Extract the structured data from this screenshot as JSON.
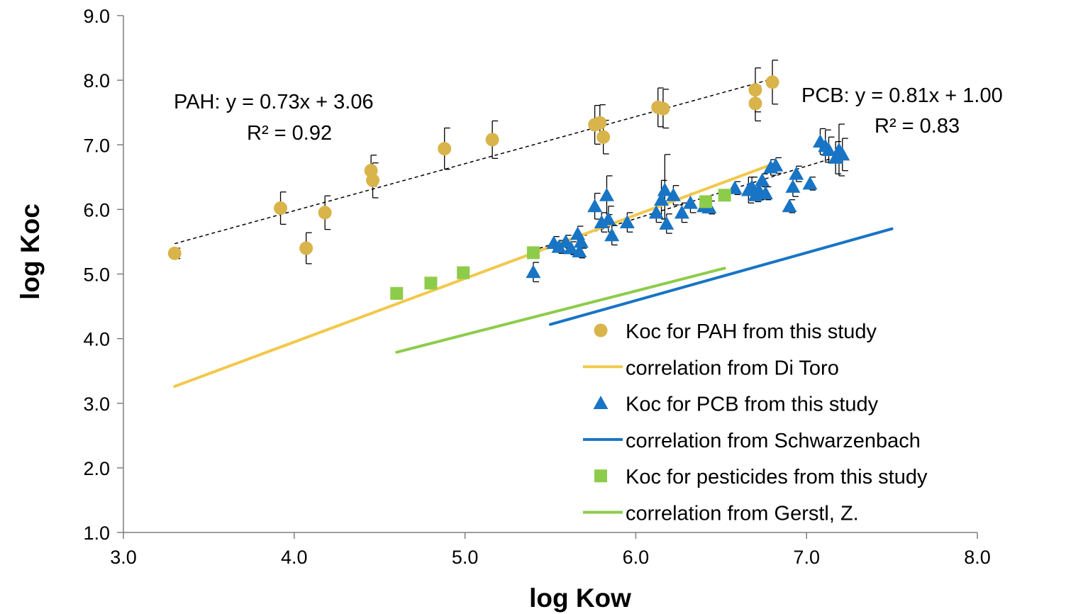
{
  "chart_data": {
    "type": "scatter",
    "title": "",
    "xlabel": "log Kow",
    "ylabel": "log Koc",
    "xlim": [
      3.0,
      8.0
    ],
    "ylim": [
      1.0,
      9.0
    ],
    "x_ticks": [
      "3.0",
      "4.0",
      "5.0",
      "6.0",
      "7.0",
      "8.0"
    ],
    "y_ticks": [
      "1.0",
      "2.0",
      "3.0",
      "4.0",
      "5.0",
      "6.0",
      "7.0",
      "8.0",
      "9.0"
    ],
    "grid": false,
    "legend_position": "bottom-right",
    "annotations": [
      {
        "lines": [
          "PAH: y = 0.73x + 3.06",
          "R² = 0.92"
        ]
      },
      {
        "lines": [
          "PCB: y = 0.81x + 1.00",
          "R² = 0.83"
        ]
      }
    ],
    "series": [
      {
        "name": "Koc for PAH from this study",
        "kind": "scatter",
        "marker": "circle",
        "color": "#D9B44A",
        "points": [
          {
            "x": 3.3,
            "y": 5.32,
            "err": 0.08
          },
          {
            "x": 3.92,
            "y": 6.02,
            "err": 0.25
          },
          {
            "x": 4.07,
            "y": 5.4,
            "err": 0.24
          },
          {
            "x": 4.18,
            "y": 5.95,
            "err": 0.26
          },
          {
            "x": 4.45,
            "y": 6.6,
            "err": 0.24
          },
          {
            "x": 4.46,
            "y": 6.45,
            "err": 0.27
          },
          {
            "x": 4.88,
            "y": 6.94,
            "err": 0.32
          },
          {
            "x": 5.16,
            "y": 7.08,
            "err": 0.29
          },
          {
            "x": 5.76,
            "y": 7.31,
            "err": 0.3
          },
          {
            "x": 5.79,
            "y": 7.34,
            "err": 0.28
          },
          {
            "x": 5.81,
            "y": 7.12,
            "err": 0.26
          },
          {
            "x": 6.13,
            "y": 7.58,
            "err": 0.3
          },
          {
            "x": 6.16,
            "y": 7.56,
            "err": 0.3
          },
          {
            "x": 6.7,
            "y": 7.85,
            "err": 0.34
          },
          {
            "x": 6.7,
            "y": 7.64,
            "err": 0.27
          },
          {
            "x": 6.8,
            "y": 7.97,
            "err": 0.34
          }
        ]
      },
      {
        "name": "correlation from Di Toro",
        "kind": "line",
        "color": "#F2C84B",
        "points": [
          {
            "x": 3.3,
            "y": 3.26
          },
          {
            "x": 6.8,
            "y": 6.7
          }
        ]
      },
      {
        "name": "Koc for PCB from this study",
        "kind": "scatter",
        "marker": "triangle",
        "color": "#1874C4",
        "points": [
          {
            "x": 5.4,
            "y": 5.03,
            "err": 0.15
          },
          {
            "x": 5.52,
            "y": 5.48,
            "err": 0.1
          },
          {
            "x": 5.55,
            "y": 5.42,
            "err": 0.1
          },
          {
            "x": 5.59,
            "y": 5.5,
            "err": 0.1
          },
          {
            "x": 5.62,
            "y": 5.4,
            "err": 0.1
          },
          {
            "x": 5.66,
            "y": 5.62,
            "err": 0.12
          },
          {
            "x": 5.67,
            "y": 5.35,
            "err": 0.1
          },
          {
            "x": 5.68,
            "y": 5.5,
            "err": 0.1
          },
          {
            "x": 5.76,
            "y": 6.05,
            "err": 0.2
          },
          {
            "x": 5.8,
            "y": 5.8,
            "err": 0.15
          },
          {
            "x": 5.83,
            "y": 6.22,
            "err": 0.3
          },
          {
            "x": 5.84,
            "y": 5.85,
            "err": 0.2
          },
          {
            "x": 5.86,
            "y": 5.6,
            "err": 0.15
          },
          {
            "x": 5.95,
            "y": 5.8,
            "err": 0.15
          },
          {
            "x": 6.12,
            "y": 5.95,
            "err": 0.15
          },
          {
            "x": 6.15,
            "y": 6.15,
            "err": 0.3
          },
          {
            "x": 6.17,
            "y": 6.3,
            "err": 0.55
          },
          {
            "x": 6.18,
            "y": 5.78,
            "err": 0.15
          },
          {
            "x": 6.22,
            "y": 6.22,
            "err": 0.15
          },
          {
            "x": 6.27,
            "y": 5.95,
            "err": 0.15
          },
          {
            "x": 6.32,
            "y": 6.1,
            "err": 0.15
          },
          {
            "x": 6.4,
            "y": 6.05,
            "err": 0.1
          },
          {
            "x": 6.43,
            "y": 6.03,
            "err": 0.1
          },
          {
            "x": 6.58,
            "y": 6.33,
            "err": 0.1
          },
          {
            "x": 6.66,
            "y": 6.3,
            "err": 0.2
          },
          {
            "x": 6.68,
            "y": 6.35,
            "err": 0.15
          },
          {
            "x": 6.7,
            "y": 6.22,
            "err": 0.1
          },
          {
            "x": 6.72,
            "y": 6.3,
            "err": 0.15
          },
          {
            "x": 6.74,
            "y": 6.45,
            "err": 0.1
          },
          {
            "x": 6.76,
            "y": 6.25,
            "err": 0.1
          },
          {
            "x": 6.79,
            "y": 6.65,
            "err": 0.12
          },
          {
            "x": 6.82,
            "y": 6.68,
            "err": 0.12
          },
          {
            "x": 6.9,
            "y": 6.05,
            "err": 0.1
          },
          {
            "x": 6.92,
            "y": 6.35,
            "err": 0.15
          },
          {
            "x": 6.94,
            "y": 6.55,
            "err": 0.12
          },
          {
            "x": 7.02,
            "y": 6.4,
            "err": 0.1
          },
          {
            "x": 7.08,
            "y": 7.05,
            "err": 0.2
          },
          {
            "x": 7.11,
            "y": 6.98,
            "err": 0.25
          },
          {
            "x": 7.13,
            "y": 6.92,
            "err": 0.2
          },
          {
            "x": 7.17,
            "y": 6.8,
            "err": 0.25
          },
          {
            "x": 7.19,
            "y": 6.92,
            "err": 0.4
          },
          {
            "x": 7.21,
            "y": 6.85,
            "err": 0.25
          }
        ]
      },
      {
        "name": "correlation from Schwarzenbach",
        "kind": "line",
        "color": "#1874C4",
        "points": [
          {
            "x": 5.5,
            "y": 4.22
          },
          {
            "x": 7.5,
            "y": 5.7
          }
        ]
      },
      {
        "name": "Koc for pesticides from this study",
        "kind": "scatter",
        "marker": "square",
        "color": "#8DCC4A",
        "points": [
          {
            "x": 4.6,
            "y": 4.7
          },
          {
            "x": 4.8,
            "y": 4.86
          },
          {
            "x": 4.99,
            "y": 5.02
          },
          {
            "x": 5.4,
            "y": 5.33
          },
          {
            "x": 6.41,
            "y": 6.12
          },
          {
            "x": 6.52,
            "y": 6.22
          }
        ]
      },
      {
        "name": "correlation from Gerstl, Z.",
        "kind": "line",
        "color": "#8DCC4A",
        "points": [
          {
            "x": 4.6,
            "y": 3.79
          },
          {
            "x": 6.52,
            "y": 5.09
          }
        ]
      }
    ],
    "trendlines": [
      {
        "label": "PAH trend",
        "style": "dashed",
        "color": "#000000",
        "points": [
          {
            "x": 3.3,
            "y": 5.47
          },
          {
            "x": 6.8,
            "y": 8.02
          }
        ]
      },
      {
        "label": "PCB trend",
        "style": "dashed",
        "color": "#000000",
        "points": [
          {
            "x": 5.4,
            "y": 5.37
          },
          {
            "x": 7.21,
            "y": 6.84
          }
        ]
      }
    ]
  }
}
